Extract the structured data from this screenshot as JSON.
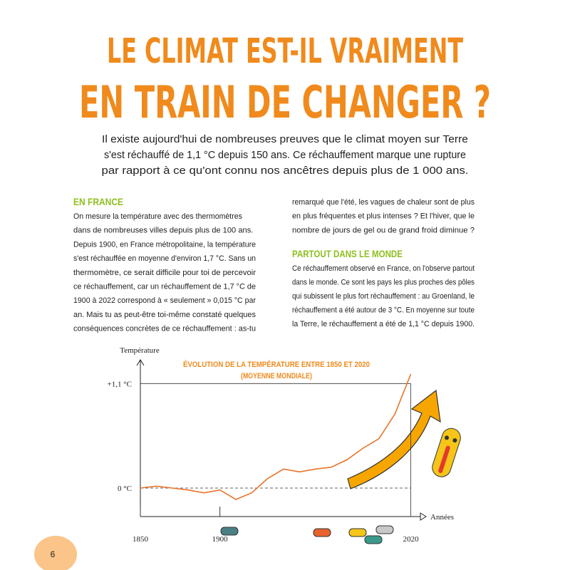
{
  "header": {
    "title_lines": [
      "LE CLIMAT EST-IL VRAIMENT",
      "EN TRAIN DE CHANGER ?"
    ],
    "intro_lines": [
      "Il existe aujourd'hui de nombreuses preuves que le climat moyen sur Terre",
      "s'est réchauffé de 1,1 °C depuis 150 ans. Ce réchauffement marque une rupture",
      "par rapport à ce qu'ont connu nos ancêtres depuis plus de 1 000 ans."
    ]
  },
  "sections": [
    {
      "heading": "EN FRANCE",
      "lines": [
        "On mesure la température avec des thermomètres",
        "dans de nombreuses villes depuis plus de 100 ans.",
        "Depuis 1900, en France métropolitaine, la température",
        "s'est réchauffée en moyenne d'environ 1,7 °C. Sans un",
        "thermomètre, ce serait difficile pour toi de percevoir",
        "ce réchauffement, car un réchauffement de 1,7 °C de",
        "1900 à 2022 correspond à « seulement » 0,015 °C par",
        "an. Mais tu as peut-être toi-même constaté quelques",
        "conséquences concrètes de ce réchauffement : as-tu",
        "remarqué que l'été, les vagues de chaleur sont de plus",
        "en plus fréquentes et plus intenses ? Et l'hiver, que le",
        "nombre de jours de gel ou de grand froid diminue ?"
      ]
    },
    {
      "heading": "PARTOUT DANS LE MONDE",
      "lines": [
        "Ce réchauffement observé en France, on l'observe partout",
        "dans le monde. Ce sont les pays les plus proches des pôles",
        "qui subissent le plus fort réchauffement : au Groenland, le",
        "réchauffement a été autour de 3 °C. En moyenne sur toute",
        "la Terre, le réchauffement a été de 1,1 °C depuis 1900."
      ]
    }
  ],
  "page_number": "6",
  "chart_data": {
    "type": "line",
    "title": "ÉVOLUTION DE LA TEMPÉRATURE ENTRE 1850 ET 2020",
    "subtitle": "(MOYENNE MONDIALE)",
    "ylabel": "Température",
    "xlabel": "Années",
    "x": [
      1850,
      1860,
      1870,
      1880,
      1890,
      1900,
      1910,
      1920,
      1930,
      1940,
      1950,
      1960,
      1970,
      1980,
      1990,
      2000,
      2010,
      2020
    ],
    "values": [
      0,
      0.02,
      0,
      -0.02,
      -0.05,
      -0.02,
      -0.12,
      -0.05,
      0.1,
      0.2,
      0.17,
      0.2,
      0.22,
      0.3,
      0.42,
      0.52,
      0.78,
      1.2
    ],
    "color": "#e8732a",
    "xlim": [
      1850,
      2026
    ],
    "ylim": [
      -0.3,
      1.35
    ],
    "xticks": [
      1850,
      1900,
      2020
    ],
    "yticks": [
      {
        "value": 0,
        "label": "0 °C"
      },
      {
        "value": 1.1,
        "label": "+1,1 °C"
      }
    ]
  }
}
